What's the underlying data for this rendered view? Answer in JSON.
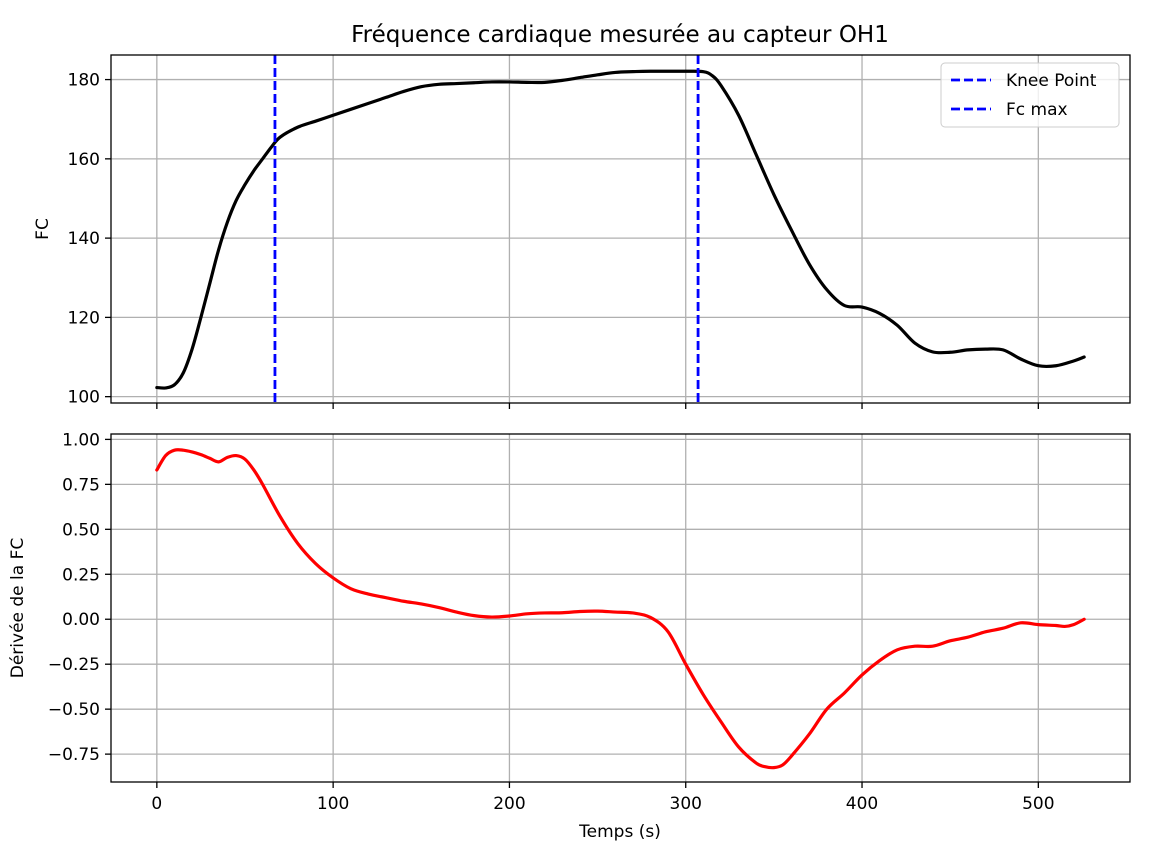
{
  "chart_data": [
    {
      "type": "line",
      "title": "Fréquence cardiaque mesurée au capteur OH1",
      "xlabel": "",
      "ylabel": "FC",
      "xlim": [
        -26,
        552
      ],
      "ylim": [
        98.4,
        186.2
      ],
      "xticks": [
        0,
        100,
        200,
        300,
        400,
        500
      ],
      "yticks": [
        100,
        120,
        140,
        160,
        180
      ],
      "ytick_labels": [
        "100",
        "120",
        "140",
        "160",
        "180"
      ],
      "grid": true,
      "legend": {
        "placement": "top-right",
        "entries": [
          "Knee Point",
          "Fc max"
        ]
      },
      "series": [
        {
          "color": "#000000",
          "x": [
            0,
            5,
            10,
            15,
            20,
            25,
            30,
            35,
            40,
            45,
            50,
            55,
            60,
            65,
            70,
            80,
            90,
            100,
            110,
            120,
            130,
            140,
            150,
            160,
            170,
            180,
            190,
            200,
            210,
            220,
            230,
            240,
            250,
            260,
            270,
            280,
            290,
            300,
            310,
            315,
            320,
            330,
            340,
            350,
            360,
            370,
            380,
            390,
            400,
            410,
            420,
            430,
            440,
            450,
            460,
            470,
            480,
            490,
            500,
            510,
            520,
            526
          ],
          "y": [
            102.3,
            102.2,
            103.0,
            106.0,
            112.0,
            120.0,
            128.5,
            137.0,
            144.0,
            149.5,
            153.5,
            157.0,
            160.0,
            163.0,
            165.5,
            168.0,
            169.5,
            171.0,
            172.5,
            174.0,
            175.5,
            177.0,
            178.2,
            178.8,
            179.0,
            179.2,
            179.4,
            179.4,
            179.3,
            179.3,
            179.8,
            180.5,
            181.2,
            181.8,
            182.0,
            182.1,
            182.1,
            182.1,
            182.0,
            181.0,
            178.5,
            171.0,
            161.0,
            151.0,
            142.0,
            133.5,
            127.0,
            123.0,
            122.6,
            121.0,
            118.0,
            113.5,
            111.3,
            111.2,
            111.8,
            112.0,
            111.8,
            109.5,
            107.8,
            107.8,
            109.0,
            110.0
          ]
        },
        {
          "name": "Knee Point",
          "color": "#0000ff",
          "style": "dashed",
          "vline_x": 67
        },
        {
          "name": "Fc max",
          "color": "#0000ff",
          "style": "dashed",
          "vline_x": 307
        }
      ]
    },
    {
      "type": "line",
      "title": "",
      "xlabel": "Temps (s)",
      "ylabel": "Dérivée de la FC",
      "xlim": [
        -26,
        552
      ],
      "ylim": [
        -0.905,
        1.03
      ],
      "xticks": [
        0,
        100,
        200,
        300,
        400,
        500
      ],
      "yticks": [
        1.0,
        0.75,
        0.5,
        0.25,
        0.0,
        -0.25,
        -0.5,
        -0.75
      ],
      "ytick_labels": [
        "1.00",
        "0.75",
        "0.50",
        "0.25",
        "0.00",
        "−0.25",
        "−0.50",
        "−0.75"
      ],
      "grid": true,
      "series": [
        {
          "color": "#ff0000",
          "x": [
            0,
            5,
            10,
            15,
            20,
            25,
            30,
            35,
            40,
            45,
            50,
            55,
            60,
            70,
            80,
            90,
            100,
            110,
            120,
            130,
            140,
            150,
            160,
            170,
            180,
            190,
            200,
            210,
            220,
            230,
            240,
            250,
            260,
            270,
            280,
            290,
            300,
            310,
            320,
            330,
            340,
            345,
            350,
            355,
            360,
            370,
            380,
            390,
            400,
            410,
            420,
            430,
            440,
            450,
            460,
            470,
            480,
            490,
            500,
            510,
            515,
            520,
            526
          ],
          "y": [
            0.83,
            0.91,
            0.94,
            0.94,
            0.93,
            0.915,
            0.895,
            0.875,
            0.9,
            0.91,
            0.89,
            0.83,
            0.75,
            0.57,
            0.42,
            0.31,
            0.23,
            0.17,
            0.14,
            0.12,
            0.1,
            0.085,
            0.065,
            0.04,
            0.02,
            0.012,
            0.018,
            0.03,
            0.035,
            0.036,
            0.043,
            0.045,
            0.04,
            0.035,
            0.01,
            -0.07,
            -0.25,
            -0.42,
            -0.57,
            -0.71,
            -0.8,
            -0.82,
            -0.825,
            -0.81,
            -0.76,
            -0.64,
            -0.5,
            -0.41,
            -0.31,
            -0.23,
            -0.17,
            -0.15,
            -0.15,
            -0.12,
            -0.1,
            -0.07,
            -0.05,
            -0.02,
            -0.03,
            -0.035,
            -0.04,
            -0.03,
            0.0
          ]
        }
      ]
    }
  ]
}
